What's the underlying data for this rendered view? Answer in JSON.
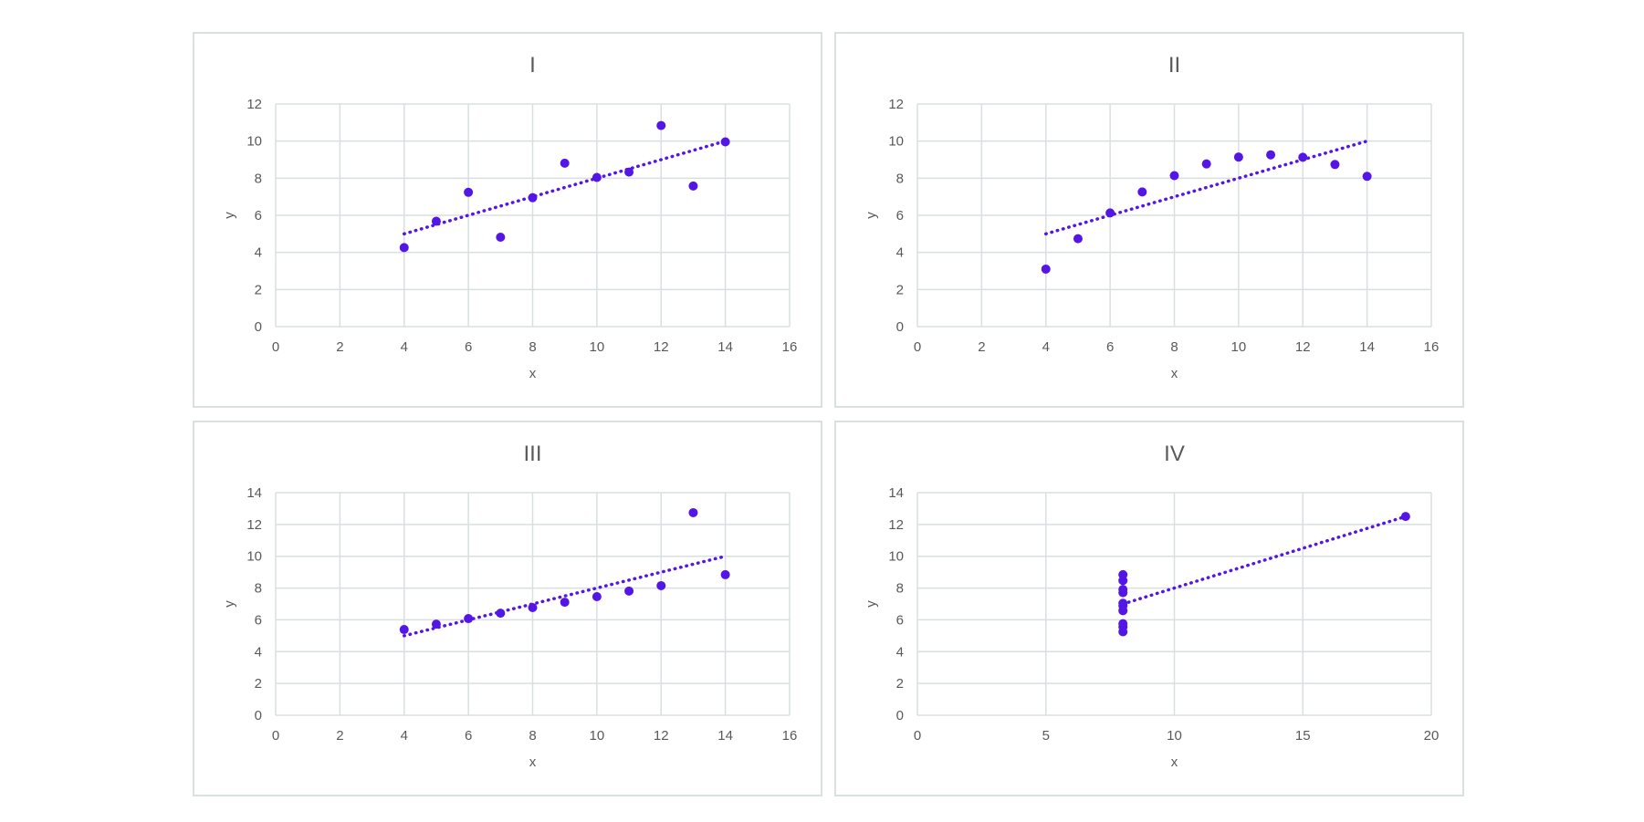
{
  "colors": {
    "point": "#5416e6",
    "trendline": "#5416e6",
    "grid": "#d9dfe0",
    "text": "#595959",
    "panel_border": "#d9e0e0"
  },
  "chart_data": [
    {
      "type": "scatter",
      "title": "I",
      "xlabel": "x",
      "ylabel": "y",
      "xlim": [
        0,
        16
      ],
      "ylim": [
        0,
        12
      ],
      "xticks": [
        0,
        2,
        4,
        6,
        8,
        10,
        12,
        14,
        16
      ],
      "yticks": [
        0,
        2,
        4,
        6,
        8,
        10,
        12
      ],
      "grid": true,
      "series": [
        {
          "x": [
            10,
            8,
            13,
            9,
            11,
            14,
            6,
            4,
            12,
            7,
            5
          ],
          "y": [
            8.04,
            6.95,
            7.58,
            8.81,
            8.33,
            9.96,
            7.24,
            4.26,
            10.84,
            4.82,
            5.68
          ]
        }
      ],
      "trendline": {
        "style": "dotted",
        "x": [
          4,
          14
        ],
        "y": [
          5.0,
          10.0
        ]
      }
    },
    {
      "type": "scatter",
      "title": "II",
      "xlabel": "x",
      "ylabel": "y",
      "xlim": [
        0,
        16
      ],
      "ylim": [
        0,
        12
      ],
      "xticks": [
        0,
        2,
        4,
        6,
        8,
        10,
        12,
        14,
        16
      ],
      "yticks": [
        0,
        2,
        4,
        6,
        8,
        10,
        12
      ],
      "grid": true,
      "series": [
        {
          "x": [
            10,
            8,
            13,
            9,
            11,
            14,
            6,
            4,
            12,
            7,
            5
          ],
          "y": [
            9.14,
            8.14,
            8.74,
            8.77,
            9.26,
            8.1,
            6.13,
            3.1,
            9.13,
            7.26,
            4.74
          ]
        }
      ],
      "trendline": {
        "style": "dotted",
        "x": [
          4,
          14
        ],
        "y": [
          5.0,
          10.0
        ]
      }
    },
    {
      "type": "scatter",
      "title": "III",
      "xlabel": "x",
      "ylabel": "y",
      "xlim": [
        0,
        16
      ],
      "ylim": [
        0,
        14
      ],
      "xticks": [
        0,
        2,
        4,
        6,
        8,
        10,
        12,
        14,
        16
      ],
      "yticks": [
        0,
        2,
        4,
        6,
        8,
        10,
        12,
        14
      ],
      "grid": true,
      "series": [
        {
          "x": [
            10,
            8,
            13,
            9,
            11,
            14,
            6,
            4,
            12,
            7,
            5
          ],
          "y": [
            7.46,
            6.77,
            12.74,
            7.11,
            7.81,
            8.84,
            6.08,
            5.39,
            8.15,
            6.42,
            5.73
          ]
        }
      ],
      "trendline": {
        "style": "dotted",
        "x": [
          4,
          14
        ],
        "y": [
          5.0,
          10.0
        ]
      }
    },
    {
      "type": "scatter",
      "title": "IV",
      "xlabel": "x",
      "ylabel": "y",
      "xlim": [
        0,
        20
      ],
      "ylim": [
        0,
        14
      ],
      "xticks": [
        0,
        5,
        10,
        15,
        20
      ],
      "yticks": [
        0,
        2,
        4,
        6,
        8,
        10,
        12,
        14
      ],
      "grid": true,
      "series": [
        {
          "x": [
            8,
            8,
            8,
            8,
            8,
            8,
            8,
            19,
            8,
            8,
            8
          ],
          "y": [
            6.58,
            5.76,
            7.71,
            8.84,
            8.47,
            7.04,
            5.25,
            12.5,
            5.56,
            7.91,
            6.89
          ]
        }
      ],
      "trendline": {
        "style": "dotted",
        "x": [
          8,
          19
        ],
        "y": [
          7.0,
          12.5
        ]
      }
    }
  ]
}
